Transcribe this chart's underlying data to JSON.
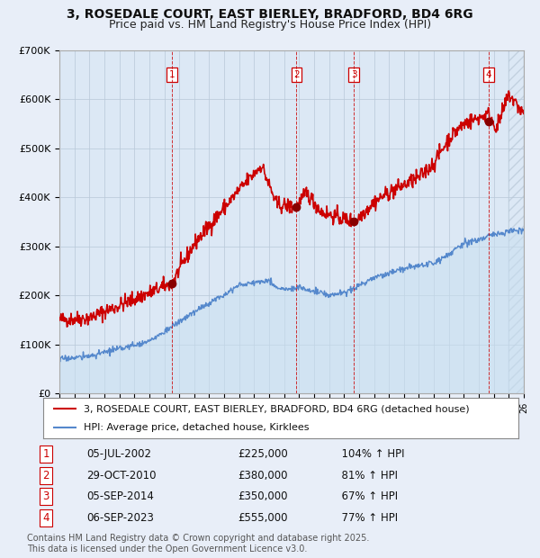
{
  "title": "3, ROSEDALE COURT, EAST BIERLEY, BRADFORD, BD4 6RG",
  "subtitle": "Price paid vs. HM Land Registry's House Price Index (HPI)",
  "ylim": [
    0,
    700000
  ],
  "yticks": [
    0,
    100000,
    200000,
    300000,
    400000,
    500000,
    600000,
    700000
  ],
  "ytick_labels": [
    "£0",
    "£100K",
    "£200K",
    "£300K",
    "£400K",
    "£500K",
    "£600K",
    "£700K"
  ],
  "x_start_year": 1995,
  "x_end_year": 2026,
  "background_color": "#e8eef8",
  "plot_bg_color": "#dce8f5",
  "grid_color": "#b8c8d8",
  "red_line_color": "#cc0000",
  "blue_line_color": "#5588cc",
  "blue_fill_color": "#c8dff0",
  "sale_marker_color": "#880000",
  "dashed_line_color": "#cc0000",
  "sales": [
    {
      "label": "1",
      "year": 2002.5,
      "price": 225000,
      "date": "05-JUL-2002",
      "pct": "104%",
      "dir": "↑"
    },
    {
      "label": "2",
      "year": 2010.83,
      "price": 380000,
      "date": "29-OCT-2010",
      "pct": "81%",
      "dir": "↑"
    },
    {
      "label": "3",
      "year": 2014.67,
      "price": 350000,
      "date": "05-SEP-2014",
      "pct": "67%",
      "dir": "↑"
    },
    {
      "label": "4",
      "year": 2023.67,
      "price": 555000,
      "date": "06-SEP-2023",
      "pct": "77%",
      "dir": "↑"
    }
  ],
  "legend_entries": [
    "3, ROSEDALE COURT, EAST BIERLEY, BRADFORD, BD4 6RG (detached house)",
    "HPI: Average price, detached house, Kirklees"
  ],
  "footer": "Contains HM Land Registry data © Crown copyright and database right 2025.\nThis data is licensed under the Open Government Licence v3.0.",
  "title_fontsize": 10,
  "subtitle_fontsize": 9,
  "axis_fontsize": 8,
  "legend_fontsize": 8,
  "table_fontsize": 8.5,
  "footer_fontsize": 7
}
